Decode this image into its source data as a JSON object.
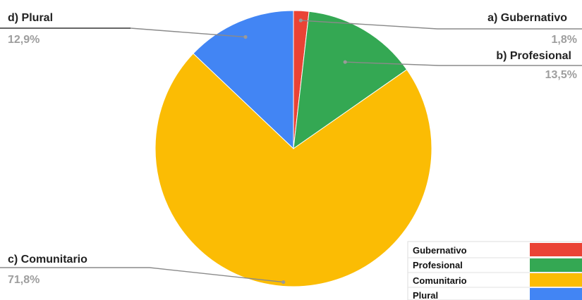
{
  "chart_data": {
    "type": "pie",
    "title": "",
    "slices": [
      {
        "label": "Gubernativo",
        "callout": "a) Gubernativo",
        "value": 1.8,
        "display": "1,8%",
        "color": "#ea4335"
      },
      {
        "label": "Profesional",
        "callout": "b) Profesional",
        "value": 13.5,
        "display": "13,5%",
        "color": "#34a853"
      },
      {
        "label": "Comunitario",
        "callout": "c) Comunitario",
        "value": 71.8,
        "display": "71,8%",
        "color": "#fbbc04"
      },
      {
        "label": "Plural",
        "callout": "d) Plural",
        "value": 12.9,
        "display": "12,9%",
        "color": "#4285f4"
      }
    ],
    "start_angle": "12 o'clock",
    "direction": "clockwise",
    "legend": {
      "position": "bottom-right"
    }
  }
}
